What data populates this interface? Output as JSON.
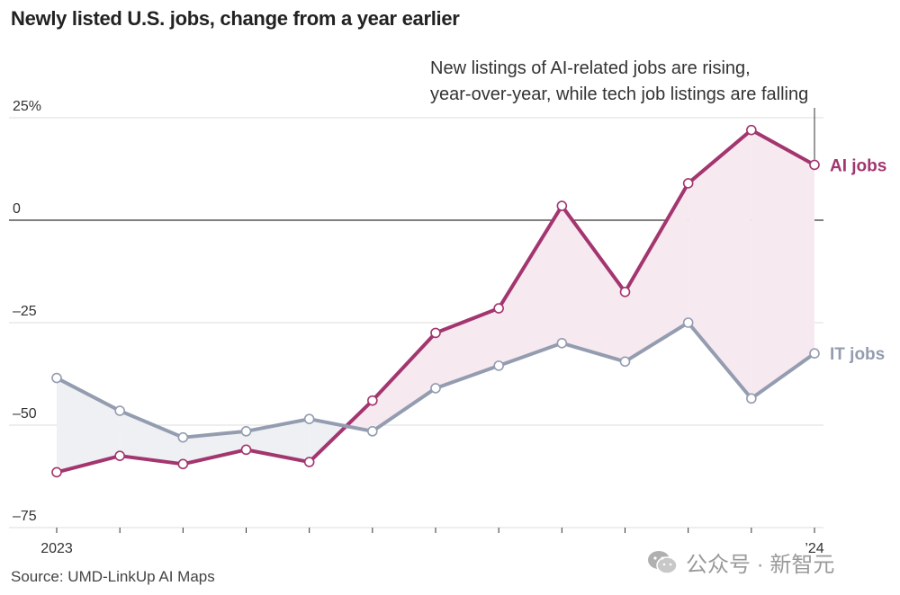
{
  "chart_data": {
    "type": "line",
    "title": "Newly listed U.S. jobs, change from a year earlier",
    "annotation": [
      "New listings of AI-related jobs are rising,",
      "year-over-year, while tech job listings are falling"
    ],
    "x_tick_labels": [
      "2023",
      "’24"
    ],
    "y_ticks": [
      25,
      0,
      -25,
      -50,
      -75
    ],
    "y_tick_labels": [
      "25%",
      "0",
      "–25",
      "–50",
      "–75"
    ],
    "ylim": [
      -75,
      25
    ],
    "grid": true,
    "series": [
      {
        "name": "AI jobs",
        "color": "#a3356f",
        "values": [
          -61.5,
          -57.5,
          -59.5,
          -56,
          -59,
          -44,
          -27.5,
          -21.5,
          3.5,
          -17.5,
          9,
          22,
          13.5
        ]
      },
      {
        "name": "IT jobs",
        "color": "#949cb0",
        "values": [
          -38.5,
          -46.5,
          -53,
          -51.5,
          -48.5,
          -51.5,
          -41,
          -35.5,
          -30,
          -34.5,
          -25,
          -43.5,
          -32.5
        ]
      }
    ],
    "source": "Source: UMD-LinkUp AI Maps"
  },
  "watermark": {
    "text": "公众号 · 新智元",
    "icon": "wechat-icon"
  }
}
